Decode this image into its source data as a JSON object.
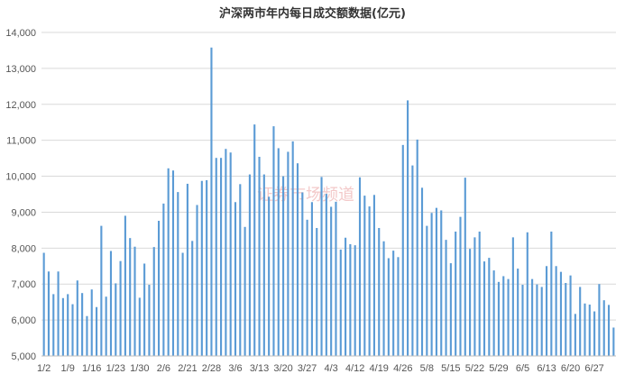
{
  "chart_data": {
    "type": "bar",
    "title": "沪深两市年内每日成交额数据(亿元)",
    "watermark_text": "证券市场频道",
    "bar_color": "#5b9bd5",
    "grid_color": "#d9d9d9",
    "ylim": [
      5000,
      14000
    ],
    "yticks": [
      "5,000",
      "6,000",
      "7,000",
      "8,000",
      "9,000",
      "10,000",
      "11,000",
      "12,000",
      "13,000",
      "14,000"
    ],
    "ytick_values": [
      5000,
      6000,
      7000,
      8000,
      9000,
      10000,
      11000,
      12000,
      13000,
      14000
    ],
    "xtick_labels": [
      "1/2",
      "1/9",
      "1/16",
      "1/23",
      "1/30",
      "2/6",
      "2/21",
      "2/28",
      "3/6",
      "3/13",
      "3/20",
      "3/27",
      "4/3",
      "4/12",
      "4/19",
      "4/26",
      "5/8",
      "5/15",
      "5/22",
      "5/29",
      "6/5",
      "6/13",
      "6/20",
      "6/27"
    ],
    "xtick_indices": [
      0,
      5,
      10,
      15,
      20,
      25,
      30,
      35,
      40,
      45,
      50,
      55,
      60,
      65,
      70,
      75,
      80,
      85,
      90,
      95,
      100,
      105,
      110,
      115
    ],
    "values": [
      7870,
      7350,
      6720,
      7350,
      6610,
      6720,
      6440,
      7100,
      6750,
      6110,
      6850,
      6360,
      8620,
      6650,
      7920,
      7020,
      7640,
      8900,
      8280,
      8040,
      6620,
      7570,
      6980,
      8030,
      8760,
      9240,
      10220,
      10160,
      9560,
      7870,
      9790,
      8200,
      9200,
      9870,
      9890,
      13580,
      10510,
      10510,
      10760,
      10660,
      9280,
      9780,
      8590,
      10050,
      11440,
      10540,
      10050,
      9430,
      11390,
      10780,
      10000,
      10680,
      10970,
      10360,
      9550,
      8790,
      9280,
      8560,
      9980,
      9510,
      9150,
      9290,
      7960,
      8290,
      8110,
      8080,
      9970,
      9460,
      9160,
      9480,
      8560,
      8190,
      7720,
      7930,
      7750,
      10870,
      12110,
      10300,
      11020,
      9680,
      8620,
      8980,
      9120,
      9050,
      8230,
      7580,
      8460,
      8870,
      9960,
      7980,
      8300,
      8460,
      7630,
      7730,
      7380,
      7060,
      7220,
      7140,
      8300,
      7430,
      6980,
      8440,
      7140,
      6990,
      6920,
      7500,
      8460,
      7500,
      7340,
      7030,
      7240,
      6170,
      6920,
      6460,
      6430,
      6240,
      7000,
      6550,
      6420,
      5790
    ]
  }
}
